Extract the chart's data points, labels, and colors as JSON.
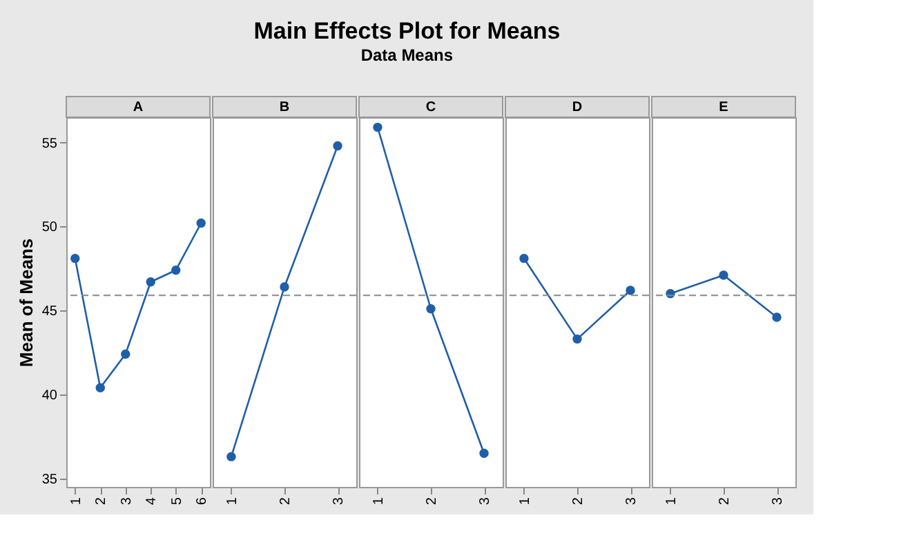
{
  "chart_data": [
    {
      "type": "line",
      "title": "A",
      "annotations": [
        "Main Effects Plot for Means",
        "Data Means"
      ],
      "ylabel": "Mean of Means",
      "categories": [
        "1",
        "2",
        "3",
        "4",
        "5",
        "6"
      ],
      "series": [
        {
          "color": "#1f5fa8",
          "values": [
            48.1,
            40.4,
            42.4,
            46.7,
            47.4,
            50.2
          ]
        }
      ],
      "ylim": [
        34.5,
        56.5
      ],
      "yticks": [
        35,
        40,
        45,
        50,
        55
      ],
      "ref_lines": [
        {
          "axis": "y",
          "value": 45.9,
          "color": "#888888",
          "line_style": "dashed"
        }
      ],
      "marker": "circle",
      "grid": false
    },
    {
      "type": "line",
      "title": "B",
      "categories": [
        "1",
        "2",
        "3"
      ],
      "series": [
        {
          "color": "#1f5fa8",
          "values": [
            36.3,
            46.4,
            54.8
          ]
        }
      ],
      "ylim": [
        34.5,
        56.5
      ],
      "yticks": [
        35,
        40,
        45,
        50,
        55
      ],
      "tick_labels": "x",
      "ref_lines": [
        {
          "axis": "y",
          "value": 45.9,
          "color": "#888888",
          "line_style": "dashed"
        }
      ],
      "marker": "circle",
      "grid": false
    },
    {
      "type": "line",
      "title": "C",
      "categories": [
        "1",
        "2",
        "3"
      ],
      "series": [
        {
          "color": "#1f5fa8",
          "values": [
            55.9,
            45.1,
            36.5
          ]
        }
      ],
      "ylim": [
        34.5,
        56.5
      ],
      "yticks": [
        35,
        40,
        45,
        50,
        55
      ],
      "tick_labels": "x",
      "ref_lines": [
        {
          "axis": "y",
          "value": 45.9,
          "color": "#888888",
          "line_style": "dashed"
        }
      ],
      "marker": "circle",
      "grid": false
    },
    {
      "type": "line",
      "title": "D",
      "categories": [
        "1",
        "2",
        "3"
      ],
      "series": [
        {
          "color": "#1f5fa8",
          "values": [
            48.1,
            43.3,
            46.2
          ]
        }
      ],
      "ylim": [
        34.5,
        56.5
      ],
      "yticks": [
        35,
        40,
        45,
        50,
        55
      ],
      "tick_labels": "x",
      "ref_lines": [
        {
          "axis": "y",
          "value": 45.9,
          "color": "#888888",
          "line_style": "dashed"
        }
      ],
      "marker": "circle",
      "grid": false
    },
    {
      "type": "line",
      "title": "E",
      "categories": [
        "1",
        "2",
        "3"
      ],
      "series": [
        {
          "color": "#1f5fa8",
          "values": [
            46.0,
            47.1,
            44.6
          ]
        }
      ],
      "ylim": [
        34.5,
        56.5
      ],
      "yticks": [
        35,
        40,
        45,
        50,
        55
      ],
      "tick_labels": "x",
      "ref_lines": [
        {
          "axis": "y",
          "value": 45.9,
          "color": "#888888",
          "line_style": "dashed"
        }
      ],
      "marker": "circle",
      "grid": false
    }
  ]
}
